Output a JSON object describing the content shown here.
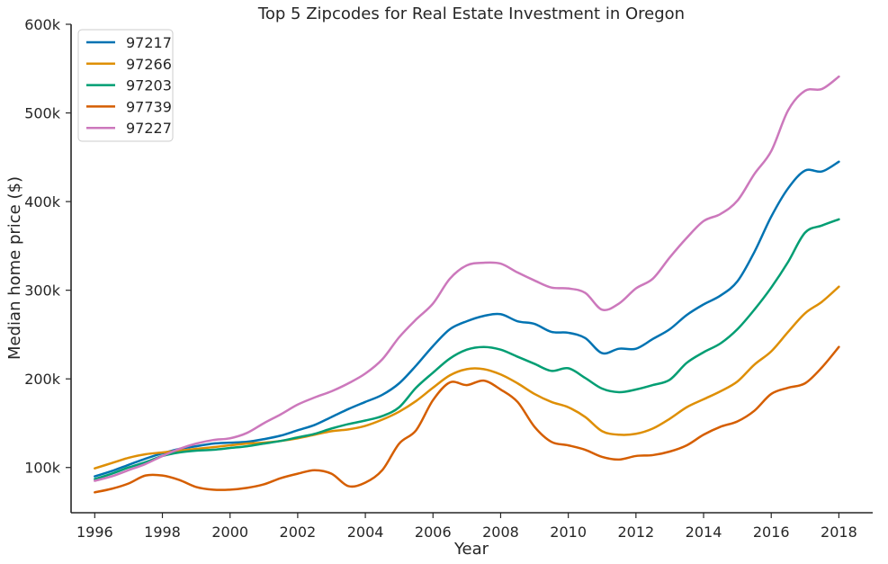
{
  "chart_data": {
    "type": "line",
    "title": "Top 5 Zipcodes for Real Estate Investment in Oregon",
    "xlabel": "Year",
    "ylabel": "Median home price ($)",
    "xlim": [
      1995.3,
      2019.0
    ],
    "ylim": [
      49000,
      600000
    ],
    "x_ticks": [
      1996,
      1998,
      2000,
      2002,
      2004,
      2006,
      2008,
      2010,
      2012,
      2014,
      2016,
      2018
    ],
    "x_tick_labels": [
      "1996",
      "1998",
      "2000",
      "2002",
      "2004",
      "2006",
      "2008",
      "2010",
      "2012",
      "2014",
      "2016",
      "2018"
    ],
    "y_ticks": [
      100000,
      200000,
      300000,
      400000,
      500000,
      600000
    ],
    "y_tick_labels": [
      "100k",
      "200k",
      "300k",
      "400k",
      "500k",
      "600k"
    ],
    "grid": false,
    "legend_position": "top-left",
    "x": [
      1996,
      1996.5,
      1997,
      1997.5,
      1998,
      1998.5,
      1999,
      1999.5,
      2000,
      2000.5,
      2001,
      2001.5,
      2002,
      2002.5,
      2003,
      2003.5,
      2004,
      2004.5,
      2005,
      2005.5,
      2006,
      2006.5,
      2007,
      2007.5,
      2008,
      2008.5,
      2009,
      2009.5,
      2010,
      2010.5,
      2011,
      2011.5,
      2012,
      2012.5,
      2013,
      2013.5,
      2014,
      2014.5,
      2015,
      2015.5,
      2016,
      2016.5,
      2017,
      2017.5,
      2018
    ],
    "series": [
      {
        "name": "97217",
        "color": "#0173b2",
        "values": [
          90000,
          96000,
          103000,
          110000,
          116000,
          121000,
          124000,
          127000,
          128000,
          129000,
          132000,
          136000,
          142000,
          148000,
          157000,
          166000,
          174000,
          182000,
          195000,
          215000,
          237000,
          256000,
          265000,
          271000,
          273000,
          265000,
          262000,
          253000,
          252000,
          246000,
          229000,
          234000,
          234000,
          245000,
          256000,
          272000,
          284000,
          294000,
          310000,
          343000,
          383000,
          415000,
          435000,
          434000,
          445000
        ]
      },
      {
        "name": "97266",
        "color": "#de8f05",
        "values": [
          99000,
          105000,
          111000,
          115000,
          117000,
          119000,
          121000,
          123000,
          125000,
          127000,
          128000,
          130000,
          133000,
          137000,
          141000,
          143000,
          147000,
          154000,
          163000,
          175000,
          190000,
          204000,
          211000,
          211000,
          205000,
          195000,
          183000,
          174000,
          168000,
          157000,
          141000,
          137000,
          138000,
          144000,
          155000,
          168000,
          177000,
          186000,
          197000,
          216000,
          231000,
          253000,
          274000,
          287000,
          304000
        ]
      },
      {
        "name": "97203",
        "color": "#029e73",
        "values": [
          87000,
          93000,
          100000,
          106000,
          113000,
          117000,
          119000,
          120000,
          122000,
          124000,
          127000,
          130000,
          134000,
          138000,
          144000,
          149000,
          153000,
          158000,
          168000,
          190000,
          207000,
          223000,
          233000,
          236000,
          233000,
          225000,
          217000,
          209000,
          212000,
          201000,
          189000,
          185000,
          188000,
          193000,
          199000,
          218000,
          230000,
          240000,
          256000,
          278000,
          303000,
          332000,
          365000,
          373000,
          380000
        ]
      },
      {
        "name": "97739",
        "color": "#d55e00",
        "values": [
          72000,
          76000,
          82000,
          91000,
          91000,
          86000,
          78000,
          75000,
          75000,
          77000,
          81000,
          88000,
          93000,
          97000,
          93000,
          79000,
          83000,
          97000,
          127000,
          142000,
          176000,
          196000,
          193000,
          198000,
          188000,
          174000,
          146000,
          129000,
          125000,
          120000,
          112000,
          109000,
          113000,
          114000,
          118000,
          125000,
          137000,
          146000,
          152000,
          164000,
          183000,
          190000,
          195000,
          213000,
          236000
        ]
      },
      {
        "name": "97227",
        "color": "#cc78bc",
        "values": [
          85000,
          90000,
          97000,
          104000,
          113000,
          121000,
          127000,
          131000,
          133000,
          139000,
          150000,
          160000,
          171000,
          179000,
          186000,
          195000,
          206000,
          222000,
          247000,
          267000,
          285000,
          313000,
          328000,
          331000,
          330000,
          320000,
          311000,
          303000,
          302000,
          297000,
          278000,
          285000,
          302000,
          313000,
          337000,
          359000,
          378000,
          386000,
          401000,
          431000,
          457000,
          503000,
          525000,
          527000,
          541000
        ]
      }
    ]
  }
}
